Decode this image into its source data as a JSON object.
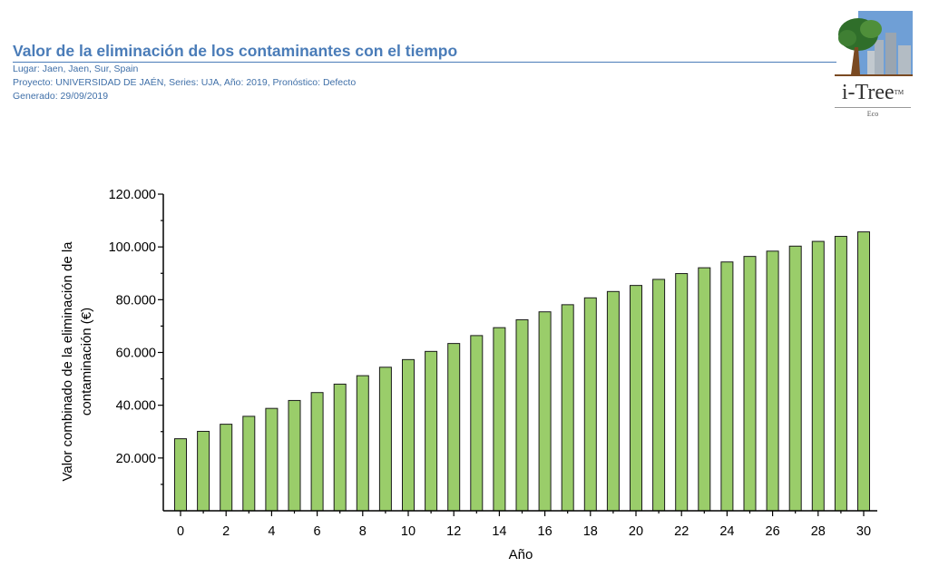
{
  "header": {
    "title": "Valor de la eliminación de los contaminantes con el tiempo",
    "location": "Lugar: Jaen, Jaen, Sur, Spain",
    "project": "Proyecto: UNIVERSIDAD DE JAÉN, Series: UJA, Año: 2019, Pronóstico: Defecto",
    "generated": "Generado: 29/09/2019"
  },
  "logo": {
    "wordmark": "i-Tree",
    "trademark": "TM",
    "product": "Eco",
    "icon": "tree-city-logo-icon"
  },
  "colors": {
    "title_blue": "#4a7cb8",
    "bar_fill": "#9acd6a",
    "bar_stroke": "#1a1a1a"
  },
  "chart_data": {
    "type": "bar",
    "title": "",
    "xlabel": "Año",
    "ylabel": "Valor combinado de la eliminación de la contaminación (€)",
    "ylabel_lines": [
      "Valor combinado de la eliminación de la",
      "contaminación (€)"
    ],
    "categories": [
      0,
      1,
      2,
      3,
      4,
      5,
      6,
      7,
      8,
      9,
      10,
      11,
      12,
      13,
      14,
      15,
      16,
      17,
      18,
      19,
      20,
      21,
      22,
      23,
      24,
      25,
      26,
      27,
      28,
      29,
      30
    ],
    "values": [
      27300,
      30100,
      32800,
      35800,
      38800,
      41800,
      44800,
      48000,
      51200,
      54400,
      57300,
      60400,
      63400,
      66400,
      69400,
      72400,
      75400,
      78100,
      80700,
      83100,
      85400,
      87700,
      89900,
      92100,
      94300,
      96400,
      98400,
      100300,
      102100,
      104000,
      105700
    ],
    "x_tick_labels": [
      "0",
      "2",
      "4",
      "6",
      "8",
      "10",
      "12",
      "14",
      "16",
      "18",
      "20",
      "22",
      "24",
      "26",
      "28",
      "30"
    ],
    "y_ticks": [
      20000,
      40000,
      60000,
      80000,
      100000,
      120000
    ],
    "y_tick_labels": [
      "20.000",
      "40.000",
      "60.000",
      "80.000",
      "100.000",
      "120.000"
    ],
    "ylim": [
      0,
      120000
    ],
    "grid": false,
    "legend": "none"
  }
}
